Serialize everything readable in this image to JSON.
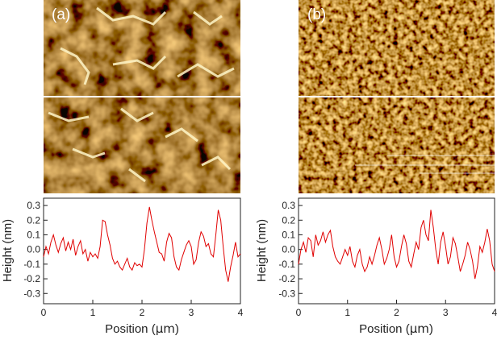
{
  "colors": {
    "afm_dark": "#3a1500",
    "afm_mid": "#b86a14",
    "afm_bright": "#fff4c8",
    "scan_line": "#ffffff",
    "profile_line": "#e00000",
    "axis": "#222222"
  },
  "chart_data": [
    {
      "type": "line",
      "panel_label": "(a)",
      "xlabel_main": "Position (",
      "xlabel_unit": "μm",
      "xlabel_close": ")",
      "ylabel": "Height (nm)",
      "xlim": [
        0,
        4
      ],
      "ylim": [
        -0.37,
        0.35
      ],
      "x_ticks": [
        0,
        1,
        2,
        3,
        4
      ],
      "x_tick_labels": [
        "0",
        "1",
        "2",
        "3",
        "4"
      ],
      "y_ticks": [
        0.3,
        0.2,
        0.1,
        0.0,
        -0.1,
        -0.2,
        -0.3
      ],
      "y_tick_labels": [
        "0.3",
        "0.2",
        "0.1",
        "0.0",
        "-0.1",
        "-0.2",
        "-0.3"
      ],
      "series": [
        {
          "x": [
            0,
            0.05,
            0.1,
            0.15,
            0.2,
            0.25,
            0.3,
            0.35,
            0.4,
            0.45,
            0.5,
            0.55,
            0.6,
            0.65,
            0.7,
            0.75,
            0.8,
            0.85,
            0.9,
            0.95,
            1.0,
            1.05,
            1.1,
            1.15,
            1.2,
            1.25,
            1.3,
            1.35,
            1.4,
            1.45,
            1.5,
            1.55,
            1.6,
            1.65,
            1.7,
            1.75,
            1.8,
            1.85,
            1.9,
            1.95,
            2.0,
            2.05,
            2.1,
            2.15,
            2.2,
            2.25,
            2.3,
            2.35,
            2.4,
            2.45,
            2.5,
            2.55,
            2.6,
            2.65,
            2.7,
            2.75,
            2.8,
            2.85,
            2.9,
            2.95,
            3.0,
            3.05,
            3.1,
            3.15,
            3.2,
            3.25,
            3.3,
            3.35,
            3.4,
            3.45,
            3.5,
            3.55,
            3.6,
            3.65,
            3.7,
            3.75,
            3.8,
            3.85,
            3.9,
            3.95,
            4.0
          ],
          "y": [
            -0.05,
            0.02,
            -0.03,
            0.05,
            0.1,
            0.03,
            -0.02,
            0.04,
            0.08,
            -0.01,
            0.05,
            0.0,
            0.07,
            -0.04,
            0.02,
            0.06,
            -0.03,
            0.0,
            -0.08,
            -0.02,
            -0.05,
            -0.03,
            -0.06,
            0.02,
            0.2,
            0.19,
            0.1,
            0.03,
            -0.06,
            -0.1,
            -0.08,
            -0.12,
            -0.14,
            -0.1,
            -0.06,
            -0.12,
            -0.14,
            -0.09,
            -0.11,
            -0.1,
            -0.12,
            0.0,
            0.18,
            0.29,
            0.2,
            0.12,
            0.05,
            -0.02,
            -0.03,
            -0.08,
            0.05,
            0.11,
            0.08,
            -0.05,
            -0.12,
            -0.14,
            -0.07,
            -0.02,
            0.03,
            0.06,
            0.02,
            -0.1,
            -0.07,
            0.05,
            0.12,
            0.09,
            0.02,
            0.04,
            -0.03,
            -0.05,
            0.1,
            0.27,
            0.2,
            0.02,
            -0.14,
            -0.22,
            -0.12,
            -0.04,
            0.05,
            -0.05,
            -0.03
          ]
        }
      ]
    },
    {
      "type": "line",
      "panel_label": "(b)",
      "xlabel_main": "Position (",
      "xlabel_unit": "μm",
      "xlabel_close": ")",
      "ylabel": "Height (nm)",
      "xlim": [
        0,
        4
      ],
      "ylim": [
        -0.37,
        0.35
      ],
      "x_ticks": [
        0,
        1,
        2,
        3,
        4
      ],
      "x_tick_labels": [
        "0",
        "1",
        "2",
        "3",
        "4"
      ],
      "y_ticks": [
        0.3,
        0.2,
        0.1,
        0.0,
        -0.1,
        -0.2,
        -0.3
      ],
      "y_tick_labels": [
        "0.3",
        "0.2",
        "0.1",
        "0.0",
        "-0.1",
        "-0.2",
        "-0.3"
      ],
      "series": [
        {
          "x": [
            0,
            0.05,
            0.1,
            0.15,
            0.2,
            0.25,
            0.3,
            0.35,
            0.4,
            0.45,
            0.5,
            0.55,
            0.6,
            0.65,
            0.7,
            0.75,
            0.8,
            0.85,
            0.9,
            0.95,
            1.0,
            1.05,
            1.1,
            1.15,
            1.2,
            1.25,
            1.3,
            1.35,
            1.4,
            1.45,
            1.5,
            1.55,
            1.6,
            1.65,
            1.7,
            1.75,
            1.8,
            1.85,
            1.9,
            1.95,
            2.0,
            2.05,
            2.1,
            2.15,
            2.2,
            2.25,
            2.3,
            2.35,
            2.4,
            2.45,
            2.5,
            2.55,
            2.6,
            2.65,
            2.7,
            2.75,
            2.8,
            2.85,
            2.9,
            2.95,
            3.0,
            3.05,
            3.1,
            3.15,
            3.2,
            3.25,
            3.3,
            3.35,
            3.4,
            3.45,
            3.5,
            3.55,
            3.6,
            3.65,
            3.7,
            3.75,
            3.8,
            3.85,
            3.9,
            3.95,
            4.0
          ],
          "y": [
            -0.1,
            0.0,
            0.05,
            -0.02,
            0.08,
            0.06,
            -0.05,
            0.1,
            0.03,
            0.06,
            0.12,
            0.05,
            0.1,
            0.13,
            0.02,
            -0.05,
            -0.08,
            -0.1,
            -0.05,
            0.0,
            -0.04,
            0.02,
            -0.08,
            -0.12,
            -0.04,
            0.0,
            -0.1,
            -0.15,
            -0.12,
            -0.05,
            -0.1,
            -0.04,
            0.03,
            0.08,
            0.0,
            -0.1,
            -0.06,
            0.0,
            0.1,
            -0.05,
            -0.12,
            -0.08,
            0.02,
            0.1,
            0.04,
            -0.08,
            -0.12,
            -0.03,
            0.05,
            0.0,
            0.15,
            0.2,
            0.1,
            0.06,
            0.27,
            0.15,
            0.0,
            -0.1,
            0.05,
            0.12,
            0.02,
            -0.1,
            -0.05,
            0.08,
            0.04,
            -0.05,
            -0.15,
            -0.1,
            -0.04,
            0.05,
            0.0,
            -0.08,
            -0.2,
            -0.12,
            0.02,
            -0.02,
            0.05,
            0.14,
            0.06,
            -0.1,
            -0.15
          ]
        }
      ]
    }
  ]
}
